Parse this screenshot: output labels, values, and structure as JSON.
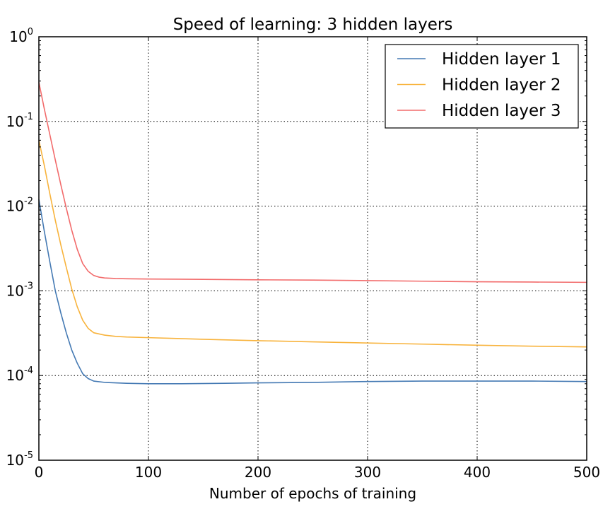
{
  "chart_data": {
    "type": "line",
    "title": "Speed of learning: 3 hidden layers",
    "xlabel": "Number of epochs of training",
    "ylabel": "",
    "xlim": [
      0,
      500
    ],
    "ylim": [
      1e-05,
      1
    ],
    "yscale": "log",
    "grid": true,
    "legend_position": "top-right",
    "x_ticks": [
      {
        "value": 0,
        "label": "0"
      },
      {
        "value": 100,
        "label": "100"
      },
      {
        "value": 200,
        "label": "200"
      },
      {
        "value": 300,
        "label": "300"
      },
      {
        "value": 400,
        "label": "400"
      },
      {
        "value": 500,
        "label": "500"
      }
    ],
    "y_ticks": [
      {
        "value": 1,
        "base": "10",
        "exp": "0"
      },
      {
        "value": 0.1,
        "base": "10",
        "exp": "-1"
      },
      {
        "value": 0.01,
        "base": "10",
        "exp": "-2"
      },
      {
        "value": 0.001,
        "base": "10",
        "exp": "-3"
      },
      {
        "value": 0.0001,
        "base": "10",
        "exp": "-4"
      },
      {
        "value": 1e-05,
        "base": "10",
        "exp": "-5"
      }
    ],
    "series": [
      {
        "name": "Hidden layer 1",
        "color": "#4479b3",
        "x": [
          0,
          5,
          10,
          15,
          20,
          25,
          30,
          35,
          40,
          45,
          50,
          60,
          70,
          80,
          100,
          130,
          170,
          200,
          250,
          300,
          350,
          400,
          450,
          500
        ],
        "values": [
          0.012,
          0.005,
          0.0022,
          0.001,
          0.00055,
          0.00032,
          0.0002,
          0.00014,
          0.000105,
          9.2e-05,
          8.6e-05,
          8.3e-05,
          8.2e-05,
          8.1e-05,
          8e-05,
          8e-05,
          8.1e-05,
          8.2e-05,
          8.3e-05,
          8.5e-05,
          8.6e-05,
          8.6e-05,
          8.6e-05,
          8.5e-05
        ]
      },
      {
        "name": "Hidden layer 2",
        "color": "#f8b33c",
        "x": [
          0,
          5,
          10,
          15,
          20,
          25,
          30,
          35,
          40,
          45,
          50,
          60,
          70,
          80,
          100,
          150,
          200,
          250,
          300,
          350,
          400,
          450,
          500
        ],
        "values": [
          0.06,
          0.03,
          0.014,
          0.0068,
          0.0035,
          0.0019,
          0.00105,
          0.00065,
          0.00045,
          0.00036,
          0.00032,
          0.0003,
          0.00029,
          0.000285,
          0.00028,
          0.000268,
          0.000258,
          0.00025,
          0.000242,
          0.000235,
          0.000228,
          0.000222,
          0.000218
        ]
      },
      {
        "name": "Hidden layer 3",
        "color": "#f26b6b",
        "x": [
          0,
          5,
          10,
          15,
          20,
          25,
          30,
          35,
          40,
          45,
          50,
          55,
          60,
          70,
          80,
          100,
          150,
          200,
          250,
          300,
          350,
          400,
          450,
          500
        ],
        "values": [
          0.29,
          0.14,
          0.07,
          0.035,
          0.018,
          0.0095,
          0.0052,
          0.0031,
          0.0021,
          0.0017,
          0.00152,
          0.00145,
          0.00142,
          0.0014,
          0.00139,
          0.00138,
          0.001365,
          0.00135,
          0.00134,
          0.00132,
          0.0013,
          0.00128,
          0.00127,
          0.00126
        ]
      }
    ]
  }
}
